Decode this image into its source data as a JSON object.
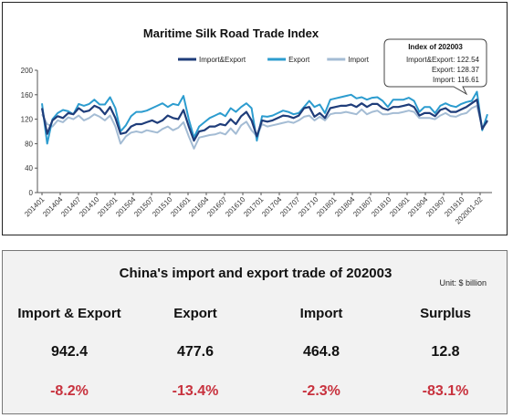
{
  "chart_data": {
    "type": "line",
    "title": "Maritime Silk Road Trade Index",
    "ylim": [
      0,
      200
    ],
    "yticks": [
      0,
      40,
      80,
      120,
      160,
      200
    ],
    "xtick_labels": [
      "201401",
      "201404",
      "201407",
      "201410",
      "201501",
      "201504",
      "201507",
      "201510",
      "201601",
      "201604",
      "201607",
      "201610",
      "201701",
      "201704",
      "201707",
      "201710",
      "201801",
      "201804",
      "201807",
      "201810",
      "201901",
      "201904",
      "201907",
      "201910",
      "202001-02"
    ],
    "legend_position": "top",
    "grid": false,
    "series": [
      {
        "name": "Import&Export",
        "color": "#1f3d7a",
        "values": [
          138,
          96,
          118,
          125,
          122,
          130,
          128,
          138,
          132,
          134,
          142,
          138,
          128,
          140,
          122,
          96,
          98,
          108,
          112,
          112,
          115,
          118,
          114,
          118,
          126,
          122,
          120,
          135,
          108,
          85,
          100,
          102,
          108,
          108,
          112,
          110,
          120,
          112,
          125,
          132,
          118,
          92,
          118,
          116,
          118,
          122,
          126,
          125,
          122,
          126,
          138,
          140,
          124,
          130,
          122,
          138,
          140,
          142,
          142,
          144,
          140,
          146,
          140,
          145,
          145,
          138,
          135,
          140,
          140,
          142,
          144,
          140,
          126,
          130,
          130,
          125,
          135,
          138,
          132,
          132,
          136,
          140,
          146,
          152,
          104,
          118
        ]
      },
      {
        "name": "Export",
        "color": "#2c9ccf",
        "values": [
          146,
          80,
          120,
          130,
          135,
          133,
          128,
          145,
          142,
          145,
          152,
          144,
          144,
          156,
          138,
          100,
          110,
          125,
          132,
          132,
          134,
          138,
          142,
          146,
          140,
          145,
          143,
          158,
          120,
          90,
          108,
          115,
          122,
          126,
          130,
          125,
          138,
          132,
          140,
          146,
          138,
          85,
          125,
          124,
          126,
          130,
          134,
          132,
          128,
          130,
          140,
          150,
          140,
          144,
          130,
          152,
          154,
          156,
          158,
          160,
          154,
          156,
          152,
          155,
          156,
          150,
          140,
          152,
          152,
          152,
          155,
          150,
          132,
          140,
          140,
          130,
          142,
          146,
          142,
          140,
          145,
          148,
          150,
          165,
          102,
          128
        ]
      },
      {
        "name": "Import",
        "color": "#a4bcd4",
        "values": [
          128,
          112,
          108,
          118,
          115,
          123,
          120,
          126,
          118,
          122,
          128,
          124,
          118,
          126,
          108,
          80,
          92,
          98,
          100,
          98,
          102,
          100,
          98,
          104,
          108,
          102,
          106,
          115,
          92,
          72,
          90,
          92,
          94,
          95,
          98,
          95,
          105,
          96,
          110,
          116,
          102,
          92,
          112,
          108,
          110,
          112,
          114,
          116,
          114,
          118,
          124,
          126,
          118,
          124,
          118,
          128,
          130,
          130,
          132,
          130,
          128,
          136,
          128,
          132,
          134,
          128,
          128,
          130,
          130,
          132,
          134,
          132,
          122,
          122,
          122,
          120,
          126,
          130,
          125,
          124,
          128,
          130,
          138,
          142,
          106,
          116
        ]
      }
    ],
    "callout": {
      "title": "Index of 202003",
      "lines": [
        "Import&Export:  122.54",
        "Export:  128.37",
        "Import:  116.61"
      ]
    }
  },
  "summary": {
    "title": "China's import and export trade of 202003",
    "unit": "Unit: $ billion",
    "columns": [
      {
        "header": "Import & Export",
        "value": "942.4",
        "change": "-8.2%"
      },
      {
        "header": "Export",
        "value": "477.6",
        "change": "-13.4%"
      },
      {
        "header": "Import",
        "value": "464.8",
        "change": "-2.3%"
      },
      {
        "header": "Surplus",
        "value": "12.8",
        "change": "-83.1%"
      }
    ]
  }
}
